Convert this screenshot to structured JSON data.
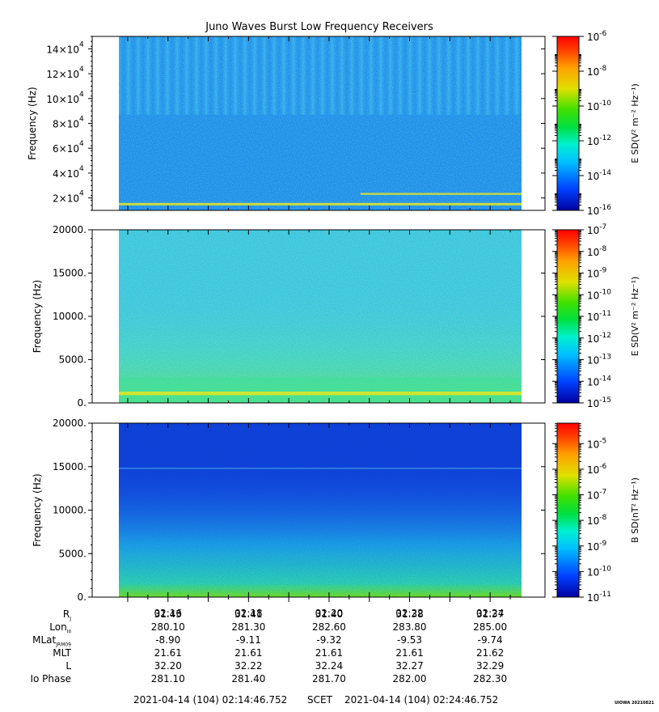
{
  "title": "Juno Waves Burst Low Frequency Receivers",
  "chart_data": [
    {
      "type": "heatmap",
      "ylabel": "Frequency (Hz)",
      "ylim": [
        10000,
        150000
      ],
      "yticks": [
        20000,
        40000,
        60000,
        80000,
        100000,
        120000,
        140000
      ],
      "ytick_mantissas": [
        "2×10",
        "4×10",
        "6×10",
        "8×10",
        "10×10",
        "12×10",
        "14×10"
      ],
      "ytick_exp": "4",
      "colorbar": {
        "label": "E SD(V² m⁻² Hz⁻¹)",
        "log_range": [
          -16,
          -6
        ],
        "ticks": [
          -16,
          -14,
          -12,
          -10,
          -8,
          -6
        ],
        "tick_base": "10"
      },
      "background_color": "#1e90e8",
      "features": [
        {
          "kind": "band",
          "from": 14000,
          "to": 16000,
          "level": "high"
        },
        {
          "kind": "band",
          "from": 22500,
          "to": 24000,
          "level": "high",
          "t_from": 0.6,
          "t_to": 1.0
        }
      ]
    },
    {
      "type": "heatmap",
      "ylabel": "Frequency (Hz)",
      "ylim": [
        0,
        20000
      ],
      "yticks": [
        0,
        5000,
        10000,
        15000,
        20000
      ],
      "ytick_labels": [
        "0.",
        "5000.",
        "10000.",
        "15000.",
        "20000."
      ],
      "colorbar": {
        "label": "E SD(V² m⁻² Hz⁻¹)",
        "log_range": [
          -15,
          -7
        ],
        "ticks": [
          -15,
          -14,
          -13,
          -12,
          -11,
          -10,
          -9,
          -8,
          -7
        ],
        "tick_base": "10"
      },
      "background_color": "#3cc6dc",
      "features": [
        {
          "kind": "band",
          "from": 0,
          "to": 3000,
          "level": "mid"
        },
        {
          "kind": "band",
          "from": 900,
          "to": 1300,
          "level": "high"
        }
      ]
    },
    {
      "type": "heatmap",
      "ylabel": "Frequency (Hz)",
      "ylim": [
        0,
        20000
      ],
      "yticks": [
        0,
        5000,
        10000,
        15000,
        20000
      ],
      "ytick_labels": [
        "0.",
        "5000.",
        "10000.",
        "15000.",
        "20000."
      ],
      "colorbar": {
        "label": "B SD(nT² Hz⁻¹)",
        "log_range": [
          -11,
          -4.2
        ],
        "ticks": [
          -11,
          -10,
          -9,
          -8,
          -7,
          -6,
          -5
        ],
        "tick_base": "10"
      },
      "background_color": "#1040d8",
      "features": [
        {
          "kind": "gradient",
          "from": 0,
          "to": 8000,
          "level": "mid"
        },
        {
          "kind": "line",
          "at": 14800,
          "level": "low"
        }
      ]
    }
  ],
  "xaxis": {
    "range_minutes": [
      14.78,
      24.78
    ],
    "ticks": [
      "02:16",
      "02:18",
      "02:20",
      "02:22",
      "02:24"
    ],
    "tick_minutes": [
      16,
      18,
      20,
      22,
      24
    ]
  },
  "ephemeris": {
    "labels": [
      "R",
      "Lon",
      "MLat",
      "MLT",
      "L",
      "Io Phase"
    ],
    "label_subscripts": [
      "J",
      "III",
      "JRM09",
      "",
      "",
      ""
    ],
    "rows": [
      [
        "31.43",
        "31.41",
        "31.40",
        "31.38",
        "31.37"
      ],
      [
        "280.10",
        "281.30",
        "282.60",
        "283.80",
        "285.00"
      ],
      [
        "-8.90",
        "-9.11",
        "-9.32",
        "-9.53",
        "-9.74"
      ],
      [
        "21.61",
        "21.61",
        "21.61",
        "21.61",
        "21.62"
      ],
      [
        "32.20",
        "32.22",
        "32.24",
        "32.27",
        "32.29"
      ],
      [
        "281.10",
        "281.40",
        "281.70",
        "282.00",
        "282.30"
      ]
    ]
  },
  "footer": {
    "start": "2021-04-14 (104) 02:14:46.752",
    "scet": "SCET",
    "end": "2021-04-14 (104) 02:24:46.752"
  },
  "credit": "UIOWA 20210821"
}
